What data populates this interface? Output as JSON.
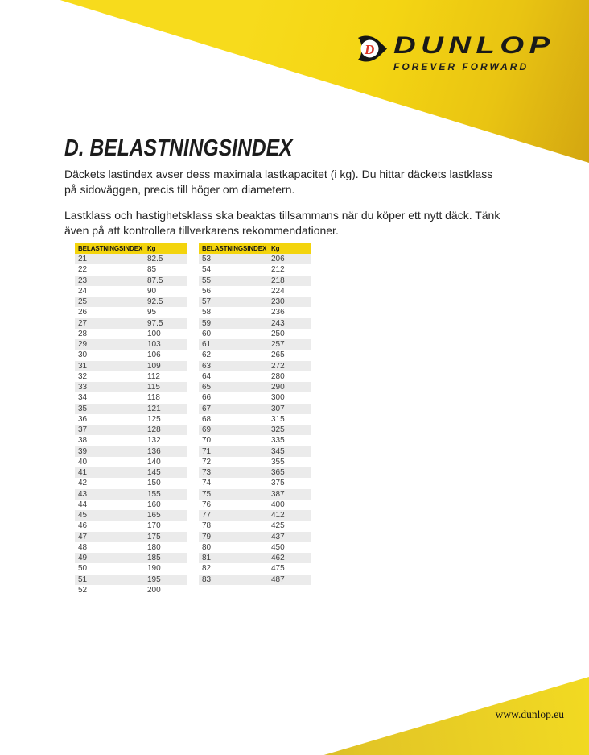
{
  "header": {
    "logo": {
      "brand": "DUNLOP",
      "tagline": "FOREVER FORWARD",
      "icon_letter": "D"
    },
    "colors": {
      "yellow": "#F5D813",
      "yellow_dark": "#D3A611",
      "red": "#DB3528",
      "black": "#191919"
    }
  },
  "content": {
    "title": "D. BELASTNINGSINDEX",
    "paragraph1": "Däckets lastindex avser dess maximala lastkapacitet (i kg). Du hittar däckets lastklass\npå sidoväggen, precis till höger om diametern.",
    "paragraph2": "Lastklass och hastighetsklass ska beaktas tillsammans när du köper ett nytt däck. Tänk\näven på att kontrollera tillverkarens rekommendationer."
  },
  "tables": [
    {
      "columns": [
        "BELASTNINGSINDEX",
        "Kg"
      ],
      "rows": [
        [
          "21",
          "82.5"
        ],
        [
          "22",
          "85"
        ],
        [
          "23",
          "87.5"
        ],
        [
          "24",
          "90"
        ],
        [
          "25",
          "92.5"
        ],
        [
          "26",
          "95"
        ],
        [
          "27",
          "97.5"
        ],
        [
          "28",
          "100"
        ],
        [
          "29",
          "103"
        ],
        [
          "30",
          "106"
        ],
        [
          "31",
          "109"
        ],
        [
          "32",
          "112"
        ],
        [
          "33",
          "115"
        ],
        [
          "34",
          "118"
        ],
        [
          "35",
          "121"
        ],
        [
          "36",
          "125"
        ],
        [
          "37",
          "128"
        ],
        [
          "38",
          "132"
        ],
        [
          "39",
          "136"
        ],
        [
          "40",
          "140"
        ],
        [
          "41",
          "145"
        ],
        [
          "42",
          "150"
        ],
        [
          "43",
          "155"
        ],
        [
          "44",
          "160"
        ],
        [
          "45",
          "165"
        ],
        [
          "46",
          "170"
        ],
        [
          "47",
          "175"
        ],
        [
          "48",
          "180"
        ],
        [
          "49",
          "185"
        ],
        [
          "50",
          "190"
        ],
        [
          "51",
          "195"
        ],
        [
          "52",
          "200"
        ]
      ]
    },
    {
      "columns": [
        "BELASTNINGSINDEX",
        "Kg"
      ],
      "rows": [
        [
          "53",
          "206"
        ],
        [
          "54",
          "212"
        ],
        [
          "55",
          "218"
        ],
        [
          "56",
          "224"
        ],
        [
          "57",
          "230"
        ],
        [
          "58",
          "236"
        ],
        [
          "59",
          "243"
        ],
        [
          "60",
          "250"
        ],
        [
          "61",
          "257"
        ],
        [
          "62",
          "265"
        ],
        [
          "63",
          "272"
        ],
        [
          "64",
          "280"
        ],
        [
          "65",
          "290"
        ],
        [
          "66",
          "300"
        ],
        [
          "67",
          "307"
        ],
        [
          "68",
          "315"
        ],
        [
          "69",
          "325"
        ],
        [
          "70",
          "335"
        ],
        [
          "71",
          "345"
        ],
        [
          "72",
          "355"
        ],
        [
          "73",
          "365"
        ],
        [
          "74",
          "375"
        ],
        [
          "75",
          "387"
        ],
        [
          "76",
          "400"
        ],
        [
          "77",
          "412"
        ],
        [
          "78",
          "425"
        ],
        [
          "79",
          "437"
        ],
        [
          "80",
          "450"
        ],
        [
          "81",
          "462"
        ],
        [
          "82",
          "475"
        ],
        [
          "83",
          "487"
        ]
      ]
    }
  ],
  "footer": {
    "url": "www.dunlop.eu"
  }
}
